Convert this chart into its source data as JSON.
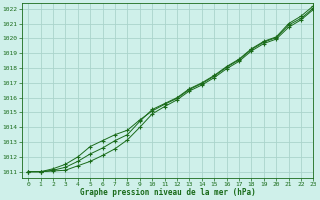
{
  "title": "Graphe pression niveau de la mer (hPa)",
  "background_color": "#cff0ea",
  "grid_color": "#aad4cc",
  "line_color": "#1a6b1a",
  "xlim": [
    -0.5,
    23
  ],
  "ylim": [
    1010.6,
    1022.4
  ],
  "yticks": [
    1011,
    1012,
    1013,
    1014,
    1015,
    1016,
    1017,
    1018,
    1019,
    1020,
    1021,
    1022
  ],
  "xticks": [
    0,
    1,
    2,
    3,
    4,
    5,
    6,
    7,
    8,
    9,
    10,
    11,
    12,
    13,
    14,
    15,
    16,
    17,
    18,
    19,
    20,
    21,
    22,
    23
  ],
  "series": [
    [
      1011.0,
      1011.0,
      1011.1,
      1011.3,
      1011.7,
      1012.2,
      1012.6,
      1013.1,
      1013.5,
      1014.4,
      1015.2,
      1015.6,
      1016.0,
      1016.6,
      1017.0,
      1017.5,
      1018.1,
      1018.6,
      1019.3,
      1019.8,
      1020.1,
      1021.0,
      1021.5,
      1022.2
    ],
    [
      1011.0,
      1011.0,
      1011.2,
      1011.5,
      1012.0,
      1012.7,
      1013.1,
      1013.5,
      1013.8,
      1014.5,
      1015.1,
      1015.55,
      1015.95,
      1016.55,
      1016.95,
      1017.45,
      1018.05,
      1018.55,
      1019.25,
      1019.75,
      1020.05,
      1020.9,
      1021.35,
      1022.05
    ],
    [
      1011.0,
      1011.0,
      1011.05,
      1011.1,
      1011.4,
      1011.7,
      1012.1,
      1012.55,
      1013.15,
      1014.0,
      1014.9,
      1015.4,
      1015.85,
      1016.45,
      1016.85,
      1017.35,
      1017.95,
      1018.45,
      1019.15,
      1019.65,
      1019.95,
      1020.75,
      1021.25,
      1021.95
    ]
  ],
  "figsize": [
    3.2,
    2.0
  ],
  "dpi": 100
}
